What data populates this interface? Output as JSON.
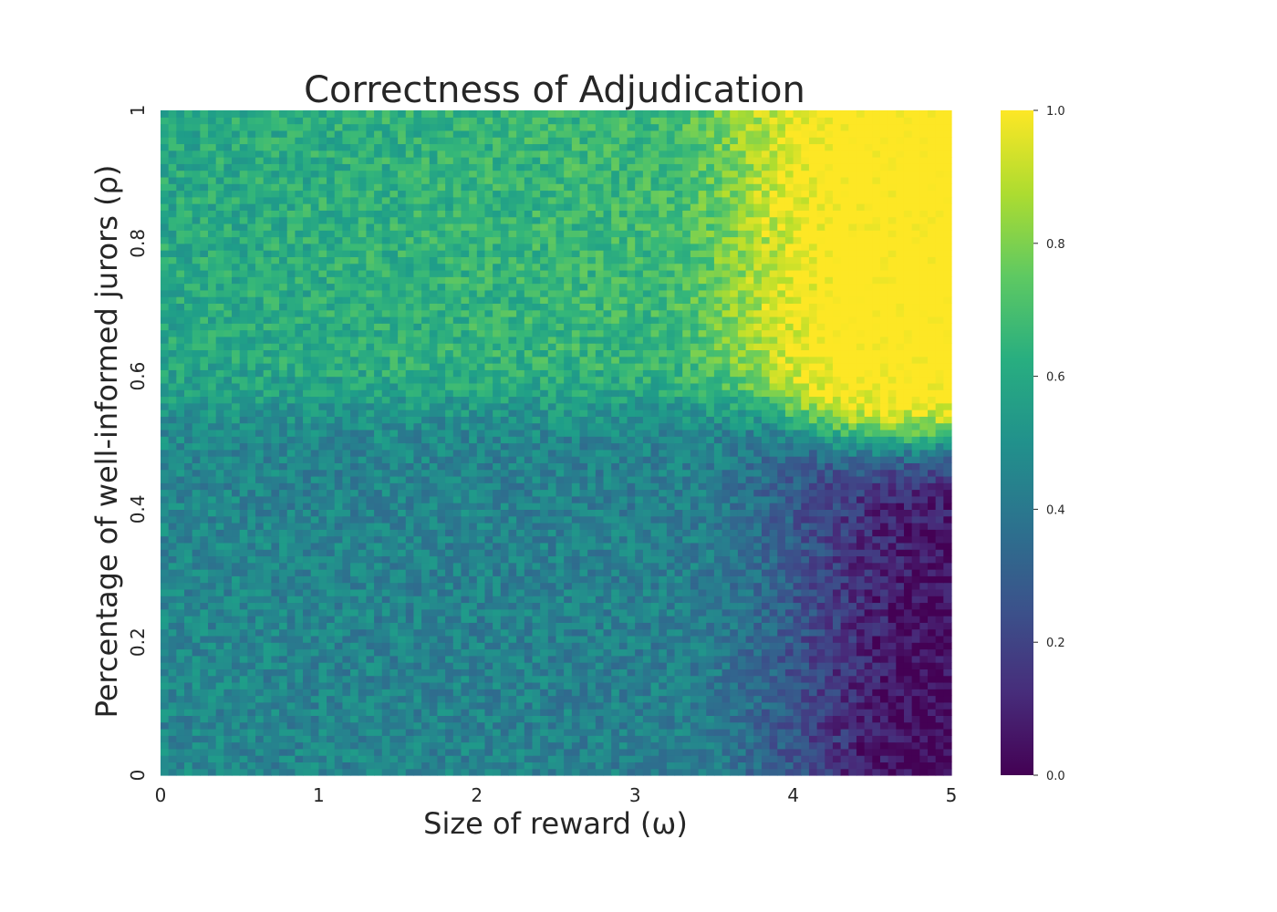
{
  "chart_data": {
    "type": "heatmap",
    "title": "Correctness of Adjudication",
    "xlabel": "Size of reward (ω)",
    "ylabel": "Percentage of well-informed jurors (ρ)",
    "xlim": [
      0,
      5
    ],
    "ylim": [
      0,
      1
    ],
    "x_ticks": [
      "0",
      "1",
      "2",
      "3",
      "4",
      "5"
    ],
    "y_ticks": [
      "0",
      "0.2",
      "0.4",
      "0.6",
      "0.8",
      "1"
    ],
    "colorbar": {
      "colormap": "viridis",
      "range": [
        0,
        1
      ],
      "ticks": [
        "0.0",
        "0.2",
        "0.4",
        "0.6",
        "0.8",
        "1.0"
      ]
    },
    "grid": false,
    "regions": [
      {
        "omega": [
          0,
          1
        ],
        "rho": [
          0.6,
          1.0
        ],
        "value": 0.65
      },
      {
        "omega": [
          3,
          3.7
        ],
        "rho": [
          0.6,
          1.0
        ],
        "value": 0.75
      },
      {
        "omega": [
          3.7,
          5
        ],
        "rho": [
          0.6,
          1.0
        ],
        "value": 0.97
      },
      {
        "omega": [
          0,
          5
        ],
        "rho": [
          0.45,
          0.6
        ],
        "value": 0.55
      },
      {
        "omega": [
          0,
          1.5
        ],
        "rho": [
          0,
          0.45
        ],
        "value": 0.45
      },
      {
        "omega": [
          1.5,
          3.5
        ],
        "rho": [
          0,
          0.45
        ],
        "value": 0.35
      },
      {
        "omega": [
          4.3,
          5
        ],
        "rho": [
          0,
          0.45
        ],
        "value": 0.05
      }
    ]
  }
}
